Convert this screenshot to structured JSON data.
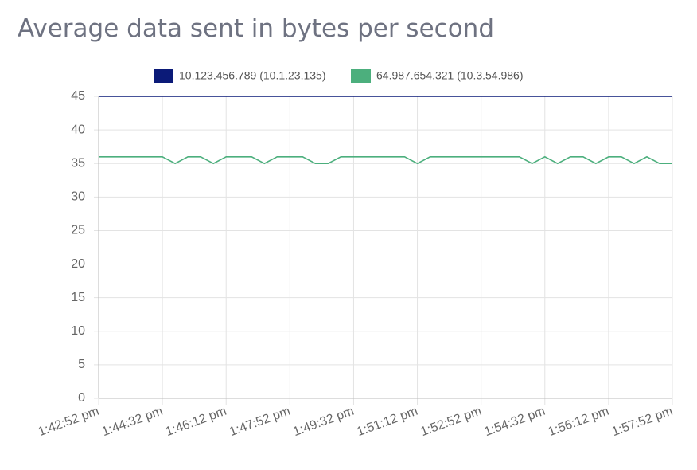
{
  "chart_data": {
    "type": "line",
    "title": "Average data sent in bytes per second",
    "categories": [
      "1:42:52 pm",
      null,
      null,
      null,
      null,
      "1:44:32 pm",
      null,
      null,
      null,
      null,
      "1:46:12 pm",
      null,
      null,
      null,
      null,
      "1:47:52 pm",
      null,
      null,
      null,
      null,
      "1:49:32 pm",
      null,
      null,
      null,
      null,
      "1:51:12 pm",
      null,
      null,
      null,
      null,
      "1:52:52 pm",
      null,
      null,
      null,
      null,
      "1:54:32 pm",
      null,
      null,
      null,
      null,
      "1:56:12 pm",
      null,
      null,
      null,
      null,
      "1:57:52 pm"
    ],
    "series": [
      {
        "name": "10.123.456.789 (10.1.23.135)",
        "color": "#0b1a78",
        "values": [
          45,
          45,
          45,
          45,
          45,
          45,
          45,
          45,
          45,
          45,
          45,
          45,
          45,
          45,
          45,
          45,
          45,
          45,
          45,
          45,
          45,
          45,
          45,
          45,
          45,
          45,
          45,
          45,
          45,
          45,
          45,
          45,
          45,
          45,
          45,
          45,
          45,
          45,
          45,
          45,
          45,
          45,
          45,
          45,
          45,
          45
        ]
      },
      {
        "name": "64.987.654.321 (10.3.54.986)",
        "color": "#4caf7d",
        "values": [
          36,
          36,
          36,
          36,
          36,
          36,
          35,
          36,
          36,
          35,
          36,
          36,
          36,
          35,
          36,
          36,
          36,
          35,
          35,
          36,
          36,
          36,
          36,
          36,
          36,
          35,
          36,
          36,
          36,
          36,
          36,
          36,
          36,
          36,
          35,
          36,
          35,
          36,
          36,
          35,
          36,
          36,
          35,
          36,
          35,
          35
        ]
      }
    ],
    "ylim": [
      0,
      45
    ],
    "yticks": [
      0,
      5,
      10,
      15,
      20,
      25,
      30,
      35,
      40,
      45
    ],
    "grid": true
  }
}
